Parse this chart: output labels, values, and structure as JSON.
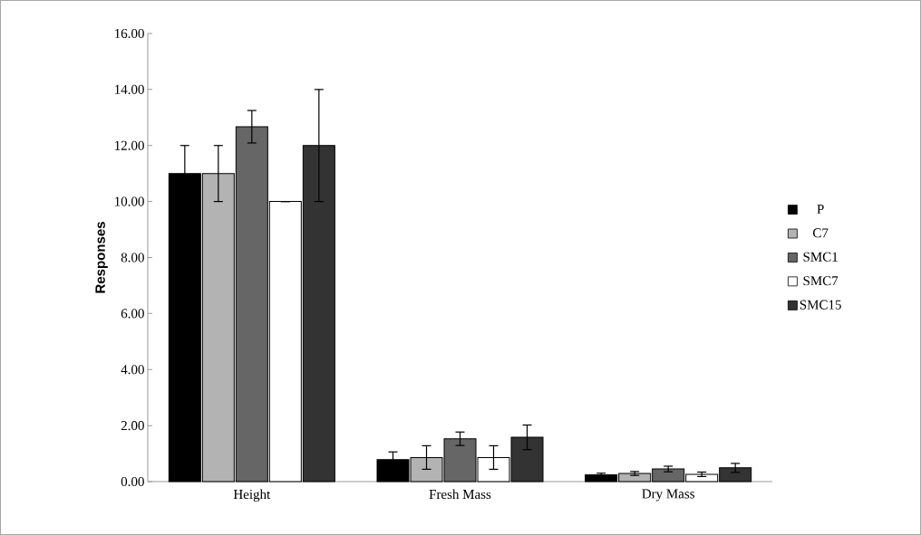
{
  "chart_data": {
    "type": "bar",
    "ylabel": "Responses",
    "categories": [
      "Height",
      "Fresh Mass",
      "Dry Mass"
    ],
    "series": [
      {
        "name": "P",
        "color": "#000000",
        "values": [
          11.0,
          0.78,
          0.24
        ],
        "errors": [
          1.0,
          0.28,
          0.06
        ]
      },
      {
        "name": "C7",
        "color": "#b3b3b3",
        "values": [
          11.0,
          0.86,
          0.29
        ],
        "errors": [
          1.0,
          0.42,
          0.07
        ]
      },
      {
        "name": "SMC1",
        "color": "#666666",
        "values": [
          12.67,
          1.53,
          0.45
        ],
        "errors": [
          0.58,
          0.24,
          0.1
        ]
      },
      {
        "name": "SMC7",
        "color": "#ffffff",
        "values": [
          10.0,
          0.86,
          0.26
        ],
        "errors": [
          0,
          0.42,
          0.08
        ]
      },
      {
        "name": "SMC15",
        "color": "#333333",
        "values": [
          12.0,
          1.58,
          0.49
        ],
        "errors": [
          2.0,
          0.44,
          0.16
        ]
      }
    ],
    "ylim": [
      0,
      16
    ],
    "yticks": [
      {
        "value": 0,
        "label": "0.00"
      },
      {
        "value": 2,
        "label": "2.00"
      },
      {
        "value": 4,
        "label": "4.00"
      },
      {
        "value": 6,
        "label": "6.00"
      },
      {
        "value": 8,
        "label": "8.00"
      },
      {
        "value": 10,
        "label": "10.00"
      },
      {
        "value": 12,
        "label": "12.00"
      },
      {
        "value": 14,
        "label": "14.00"
      },
      {
        "value": 16,
        "label": "16.00"
      }
    ],
    "grid": false,
    "legend": "right"
  }
}
